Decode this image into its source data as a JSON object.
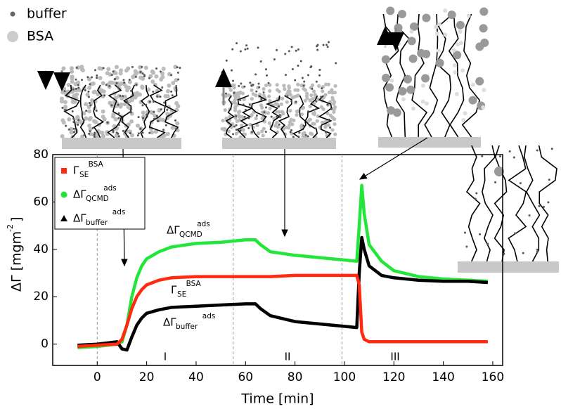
{
  "chart_data": {
    "type": "line",
    "schematic_legend": [
      "buffer",
      "BSA"
    ],
    "x_label": "Time [min]",
    "y_label": {
      "text": "ΔΓ [mgm",
      "sup": "-2",
      "end": "]"
    },
    "xlim": [
      -18,
      164
    ],
    "ylim": [
      -9,
      80
    ],
    "xticks": [
      0,
      20,
      40,
      60,
      80,
      100,
      120,
      140,
      160
    ],
    "yticks": [
      0,
      20,
      40,
      60,
      80
    ],
    "phase_boundaries": [
      0,
      55,
      99
    ],
    "phases": [
      "I",
      "II",
      "III"
    ],
    "x": [
      -8,
      0,
      8,
      10,
      12,
      14,
      16,
      18,
      20,
      25,
      30,
      40,
      50,
      60,
      64,
      66,
      70,
      80,
      90,
      100,
      105,
      106,
      107,
      108,
      110,
      115,
      120,
      130,
      140,
      150,
      158
    ],
    "series": [
      {
        "name": "Γ",
        "sub": "SE",
        "sup": "BSA",
        "color": "#ff2a10",
        "marker": "square",
        "values": [
          -1,
          -0.5,
          0,
          2,
          8,
          15,
          20,
          23,
          25,
          27,
          28,
          28.5,
          28.5,
          28.5,
          28.5,
          28.5,
          28.5,
          29,
          29,
          29,
          29,
          25,
          5,
          2,
          1,
          1,
          1,
          1,
          1,
          1,
          1
        ]
      },
      {
        "name": "ΔΓ",
        "sub": "QCMD",
        "sup": "ads",
        "color": "#22e63a",
        "marker": "circle",
        "values": [
          -1.5,
          -1,
          0,
          1,
          8,
          20,
          28,
          33,
          36,
          39,
          41,
          42.5,
          43,
          44,
          44,
          42,
          39,
          37.5,
          36.5,
          35.5,
          35,
          50,
          67,
          55,
          42,
          35,
          31,
          28.5,
          27.5,
          27,
          26.5
        ]
      },
      {
        "name": "ΔΓ",
        "sub": "buffer",
        "sup": "ads",
        "color": "#000000",
        "marker": "triangle",
        "values": [
          -0.5,
          0,
          1,
          -2,
          -2.5,
          3,
          8,
          11,
          13,
          14.5,
          15.5,
          16,
          16.5,
          17,
          17,
          15,
          12,
          9.5,
          8.5,
          7.5,
          7,
          30,
          45,
          40,
          33,
          29,
          28,
          27,
          26.5,
          26.5,
          26
        ]
      }
    ],
    "annotations": [
      {
        "text": "ΔΓ",
        "sub": "QCMD",
        "sup": "ads"
      },
      {
        "text": "Γ",
        "sub": "SE",
        "sup": "BSA"
      },
      {
        "text": "ΔΓ",
        "sub": "buffer",
        "sup": "ads"
      }
    ]
  }
}
